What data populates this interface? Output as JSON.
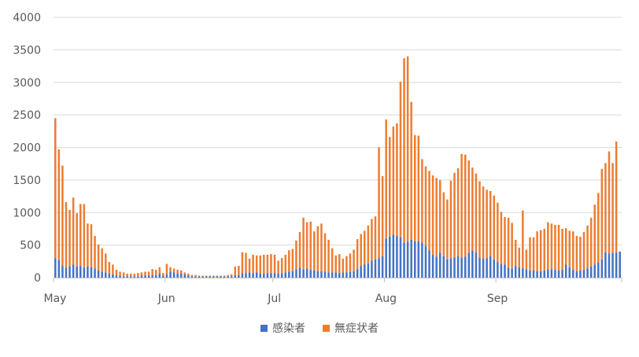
{
  "chart_data": {
    "type": "bar",
    "stacked": true,
    "title": "",
    "xlabel": "",
    "ylabel": "",
    "ylim": [
      0,
      4000
    ],
    "yticks": [
      0,
      500,
      1000,
      1500,
      2000,
      2500,
      3000,
      3500,
      4000
    ],
    "x_tick_labels": [
      {
        "label": "May",
        "day": 0
      },
      {
        "label": "Jun",
        "day": 31
      },
      {
        "label": "Jul",
        "day": 61
      },
      {
        "label": "Aug",
        "day": 92
      },
      {
        "label": "Sep",
        "day": 123
      }
    ],
    "grid": true,
    "legend_position": "bottom",
    "series": [
      {
        "name": "感染者",
        "color": "#4472C4",
        "values": [
          300,
          270,
          180,
          150,
          170,
          200,
          170,
          180,
          160,
          170,
          160,
          140,
          110,
          90,
          80,
          60,
          50,
          30,
          30,
          20,
          20,
          20,
          20,
          20,
          30,
          30,
          30,
          40,
          40,
          60,
          30,
          50,
          90,
          80,
          60,
          60,
          50,
          30,
          20,
          20,
          20,
          20,
          20,
          20,
          20,
          20,
          20,
          20,
          20,
          20,
          30,
          40,
          60,
          70,
          80,
          70,
          80,
          60,
          60,
          70,
          70,
          70,
          60,
          70,
          80,
          90,
          100,
          130,
          150,
          130,
          140,
          120,
          110,
          100,
          100,
          90,
          80,
          80,
          80,
          70,
          80,
          80,
          90,
          100,
          130,
          180,
          200,
          220,
          260,
          280,
          300,
          330,
          600,
          630,
          660,
          640,
          620,
          540,
          550,
          580,
          560,
          560,
          540,
          490,
          420,
          350,
          320,
          380,
          330,
          280,
          300,
          310,
          330,
          310,
          320,
          380,
          420,
          390,
          310,
          290,
          300,
          330,
          280,
          240,
          210,
          200,
          150,
          140,
          180,
          160,
          140,
          130,
          110,
          110,
          100,
          100,
          110,
          130,
          130,
          120,
          110,
          120,
          200,
          160,
          120,
          100,
          110,
          120,
          140,
          170,
          200,
          230,
          280,
          390,
          370,
          380,
          390,
          400
        ]
      },
      {
        "name": "無症状者",
        "color": "#ED7D31",
        "values": [
          2150,
          1700,
          1540,
          1010,
          870,
          1030,
          820,
          950,
          970,
          660,
          660,
          500,
          400,
          360,
          290,
          180,
          150,
          90,
          60,
          60,
          40,
          40,
          40,
          50,
          50,
          60,
          60,
          90,
          80,
          100,
          40,
          160,
          70,
          60,
          60,
          50,
          30,
          30,
          20,
          20,
          10,
          10,
          10,
          10,
          10,
          10,
          10,
          10,
          20,
          30,
          140,
          140,
          330,
          310,
          210,
          280,
          260,
          280,
          290,
          280,
          290,
          280,
          200,
          230,
          270,
          330,
          340,
          440,
          550,
          790,
          710,
          740,
          600,
          690,
          730,
          590,
          500,
          370,
          260,
          290,
          210,
          250,
          280,
          330,
          460,
          490,
          520,
          580,
          640,
          660,
          1700,
          1230,
          1830,
          1530,
          1660,
          1730,
          2390,
          2830,
          2850,
          2120,
          1630,
          1620,
          1280,
          1220,
          1220,
          1220,
          1210,
          1120,
          980,
          920,
          1190,
          1300,
          1350,
          1590,
          1570,
          1420,
          1270,
          1210,
          1170,
          1110,
          1050,
          1000,
          980,
          910,
          800,
          730,
          770,
          700,
          400,
          300,
          890,
          300,
          510,
          510,
          610,
          630,
          640,
          720,
          700,
          690,
          700,
          630,
          560,
          560,
          590,
          540,
          520,
          580,
          660,
          750,
          920,
          1070,
          1390,
          1370,
          1570,
          1380,
          1700
        ]
      }
    ]
  }
}
